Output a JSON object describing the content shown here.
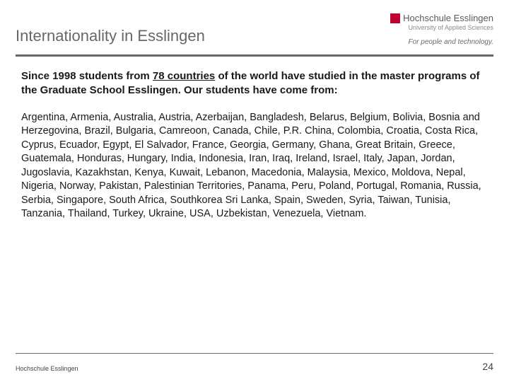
{
  "colors": {
    "background": "#ffffff",
    "title_color": "#676767",
    "divider_color": "#676767",
    "body_text": "#1a1a1a",
    "logo_red": "#c3002f",
    "logo_grey": "#5a5a5a",
    "logo_sub_grey": "#8a8a8a",
    "tagline_grey": "#6a6a6a",
    "footer_text": "#444444"
  },
  "typography": {
    "title_fontsize": 22,
    "intro_fontsize": 15,
    "body_fontsize": 14.5,
    "footer_fontsize": 9,
    "pagenum_fontsize": 14,
    "font_family": "Verdana"
  },
  "header": {
    "title": "Internationality in Esslingen",
    "logo": {
      "main": "Hochschule Esslingen",
      "sub": "University of Applied Sciences",
      "tagline": "For people and technology."
    }
  },
  "content": {
    "intro_prefix": "Since 1998 students from ",
    "intro_highlight": "78 countries",
    "intro_suffix": " of the world have studied in the master programs of the Graduate School Esslingen. Our students have come from:",
    "countries_text": "Argentina, Armenia, Australia, Austria, Azerbaijan, Bangladesh, Belarus, Belgium, Bolivia, Bosnia and Herzegovina, Brazil, Bulgaria, Camreoon, Canada, Chile, P.R. China, Colombia, Croatia, Costa Rica, Cyprus, Ecuador, Egypt, El Salvador, France, Georgia, Germany, Ghana, Great Britain, Greece, Guatemala, Honduras, Hungary, India, Indonesia, Iran, Iraq, Ireland, Israel, Italy, Japan, Jordan, Jugoslavia, Kazakhstan, Kenya, Kuwait, Lebanon, Macedonia, Malaysia, Mexico, Moldova, Nepal, Nigeria, Norway, Pakistan, Palestinian Territories, Panama, Peru, Poland, Portugal, Romania, Russia, Serbia, Singapore, South Africa, Southkorea Sri Lanka, Spain, Sweden, Syria, Taiwan, Tunisia, Tanzania, Thailand, Turkey, Ukraine, USA, Uzbekistan, Venezuela, Vietnam."
  },
  "footer": {
    "text": "Hochschule Esslingen",
    "page_number": "24"
  }
}
